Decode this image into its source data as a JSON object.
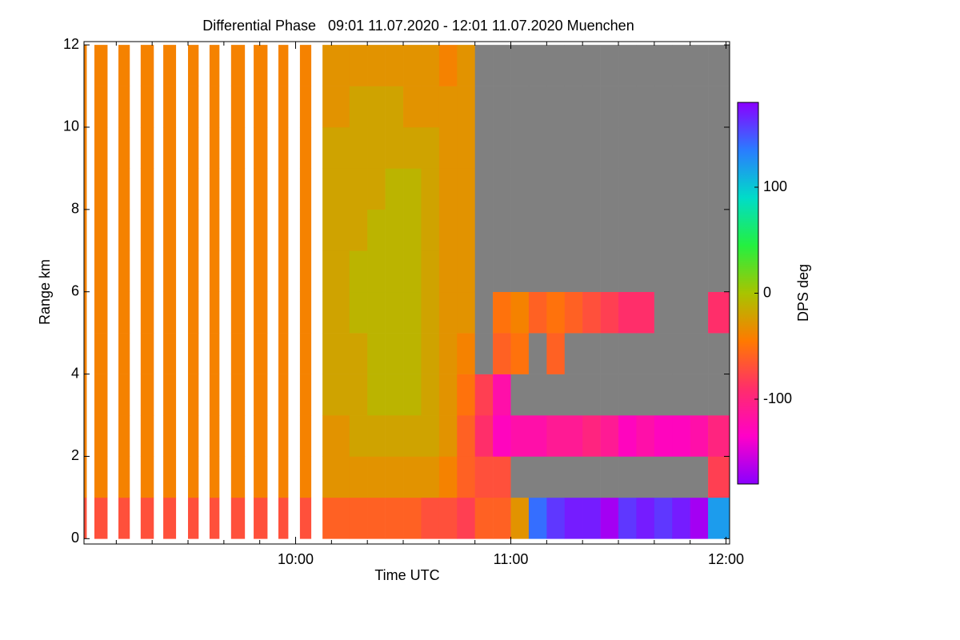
{
  "chart_data": {
    "type": "heatmap",
    "title": "Differential Phase   09:01 11.07.2020 - 12:01 11.07.2020 Muenchen",
    "x_label": "Time UTC",
    "y_label": "Range km",
    "colorbar_label": "DPS deg",
    "xlim": [
      1,
      181
    ],
    "ylim": [
      -0.13,
      12.08
    ],
    "xticks": [
      {
        "value": 60,
        "label": "10:00"
      },
      {
        "value": 120,
        "label": "11:00"
      },
      {
        "value": 180,
        "label": "12:00"
      }
    ],
    "xminorticks": [
      10,
      20,
      30,
      40,
      50,
      70,
      80,
      90,
      100,
      110,
      130,
      140,
      150,
      160,
      170
    ],
    "yticks": [
      0,
      2,
      4,
      6,
      8,
      10,
      12
    ],
    "clim": [
      -180,
      180
    ],
    "cticks": [
      -100,
      0,
      100
    ],
    "colormap": [
      "#8a00ff",
      "#ff00c8",
      "#ff2e6a",
      "#ff7a00",
      "#a8c400",
      "#24f040",
      "#00dcc8",
      "#2a7cff",
      "#8a00ff"
    ],
    "no_echo_color": "#808080",
    "y_edges": [
      0,
      1,
      2,
      3,
      4,
      5,
      6,
      7,
      8,
      9,
      10,
      11,
      12
    ],
    "x_ranges": [
      [
        1.0,
        1.7
      ],
      [
        3.9,
        7.5
      ],
      [
        10.6,
        13.7
      ],
      [
        16.8,
        20.4
      ],
      [
        23.1,
        26.6
      ],
      [
        30.0,
        32.9
      ],
      [
        36.0,
        38.7
      ],
      [
        42.0,
        45.8
      ],
      [
        48.3,
        52.1
      ],
      [
        55.2,
        57.9
      ],
      [
        61.2,
        64.3
      ],
      [
        67.5,
        75
      ],
      [
        75,
        80
      ],
      [
        80,
        85
      ],
      [
        85,
        90
      ],
      [
        90,
        95
      ],
      [
        95,
        100
      ],
      [
        100,
        105
      ],
      [
        105,
        110
      ],
      [
        110,
        115
      ],
      [
        115,
        120
      ],
      [
        120,
        125
      ],
      [
        125,
        130
      ],
      [
        130,
        135
      ],
      [
        135,
        140
      ],
      [
        140,
        145
      ],
      [
        145,
        150
      ],
      [
        150,
        155
      ],
      [
        155,
        160
      ],
      [
        160,
        165
      ],
      [
        165,
        170
      ],
      [
        170,
        175
      ],
      [
        175,
        181
      ]
    ],
    "values": [
      [
        -70,
        -40,
        -40,
        -40,
        -40,
        -40,
        -40,
        -40,
        -40,
        -40,
        -40,
        -40
      ],
      [
        -70,
        -40,
        -40,
        -40,
        -40,
        -40,
        -40,
        -40,
        -40,
        -40,
        -40,
        -40
      ],
      [
        -70,
        -40,
        -40,
        -40,
        -40,
        -40,
        -40,
        -40,
        -40,
        -40,
        -40,
        -40
      ],
      [
        -70,
        -40,
        -40,
        -40,
        -40,
        -40,
        -40,
        -40,
        -40,
        -40,
        -40,
        -40
      ],
      [
        -70,
        -40,
        -40,
        -40,
        -40,
        -40,
        -40,
        -40,
        -40,
        -40,
        -40,
        -40
      ],
      [
        -70,
        -40,
        -40,
        -40,
        -40,
        -40,
        -40,
        -40,
        -40,
        -40,
        -40,
        -40
      ],
      [
        -70,
        -40,
        -40,
        -40,
        -40,
        -40,
        -40,
        -40,
        -40,
        -40,
        -40,
        -40
      ],
      [
        -70,
        -40,
        -40,
        -40,
        -40,
        -40,
        -40,
        -40,
        -40,
        -40,
        -40,
        -40
      ],
      [
        -70,
        -40,
        -40,
        -40,
        -40,
        -40,
        -40,
        -40,
        -40,
        -40,
        -40,
        -40
      ],
      [
        -70,
        -40,
        -40,
        -40,
        -40,
        -40,
        -40,
        -40,
        -40,
        -40,
        -40,
        -40
      ],
      [
        -70,
        -40,
        -40,
        -40,
        -40,
        -40,
        -40,
        -40,
        -40,
        -40,
        -40,
        -40
      ],
      [
        -60,
        -30,
        -30,
        -20,
        -20,
        -20,
        -20,
        -20,
        -20,
        -20,
        -30,
        -30
      ],
      [
        -60,
        -30,
        -20,
        -20,
        -20,
        -10,
        -10,
        -20,
        -20,
        -20,
        -20,
        -30
      ],
      [
        -60,
        -30,
        -20,
        -10,
        -10,
        -10,
        -10,
        -10,
        -20,
        -20,
        -20,
        -30
      ],
      [
        -60,
        -30,
        -20,
        -10,
        -10,
        -10,
        -10,
        -10,
        -10,
        -20,
        -20,
        -30
      ],
      [
        -60,
        -30,
        -20,
        -10,
        -10,
        -10,
        -10,
        -10,
        -10,
        -20,
        -30,
        -30
      ],
      [
        -70,
        -30,
        -20,
        -20,
        -20,
        -20,
        -20,
        -20,
        -20,
        -20,
        -30,
        -30
      ],
      [
        -70,
        -40,
        -30,
        -30,
        -30,
        -30,
        -30,
        -30,
        -30,
        -30,
        -30,
        -40
      ],
      [
        -80,
        -60,
        -60,
        -50,
        -40,
        -30,
        -30,
        -30,
        -30,
        -30,
        -30,
        -30
      ],
      [
        -60,
        -70,
        -90,
        -80,
        null,
        null,
        null,
        null,
        null,
        null,
        null,
        null
      ],
      [
        -60,
        -70,
        -130,
        -120,
        -60,
        -50,
        null,
        null,
        null,
        null,
        null,
        null
      ],
      [
        -30,
        null,
        -120,
        null,
        -50,
        -40,
        null,
        null,
        null,
        null,
        null,
        null
      ],
      [
        140,
        null,
        -120,
        null,
        null,
        -60,
        null,
        null,
        null,
        null,
        null,
        null
      ],
      [
        160,
        null,
        -110,
        null,
        -60,
        -50,
        null,
        null,
        null,
        null,
        null,
        null
      ],
      [
        170,
        null,
        -110,
        null,
        null,
        -60,
        null,
        null,
        null,
        null,
        null,
        null
      ],
      [
        170,
        null,
        -100,
        null,
        null,
        -70,
        null,
        null,
        null,
        null,
        null,
        null
      ],
      [
        -170,
        null,
        -110,
        null,
        null,
        -80,
        null,
        null,
        null,
        null,
        null,
        null
      ],
      [
        160,
        null,
        -130,
        null,
        null,
        -90,
        null,
        null,
        null,
        null,
        null,
        null
      ],
      [
        170,
        null,
        -120,
        null,
        null,
        -90,
        null,
        null,
        null,
        null,
        null,
        null
      ],
      [
        160,
        null,
        -130,
        null,
        null,
        null,
        null,
        null,
        null,
        null,
        null,
        null
      ],
      [
        170,
        null,
        -130,
        null,
        null,
        null,
        null,
        null,
        null,
        null,
        null,
        null
      ],
      [
        -170,
        null,
        -120,
        null,
        null,
        null,
        null,
        null,
        null,
        null,
        null,
        null
      ],
      [
        120,
        -80,
        -100,
        null,
        null,
        -90,
        null,
        null,
        null,
        null,
        null,
        null
      ]
    ]
  }
}
